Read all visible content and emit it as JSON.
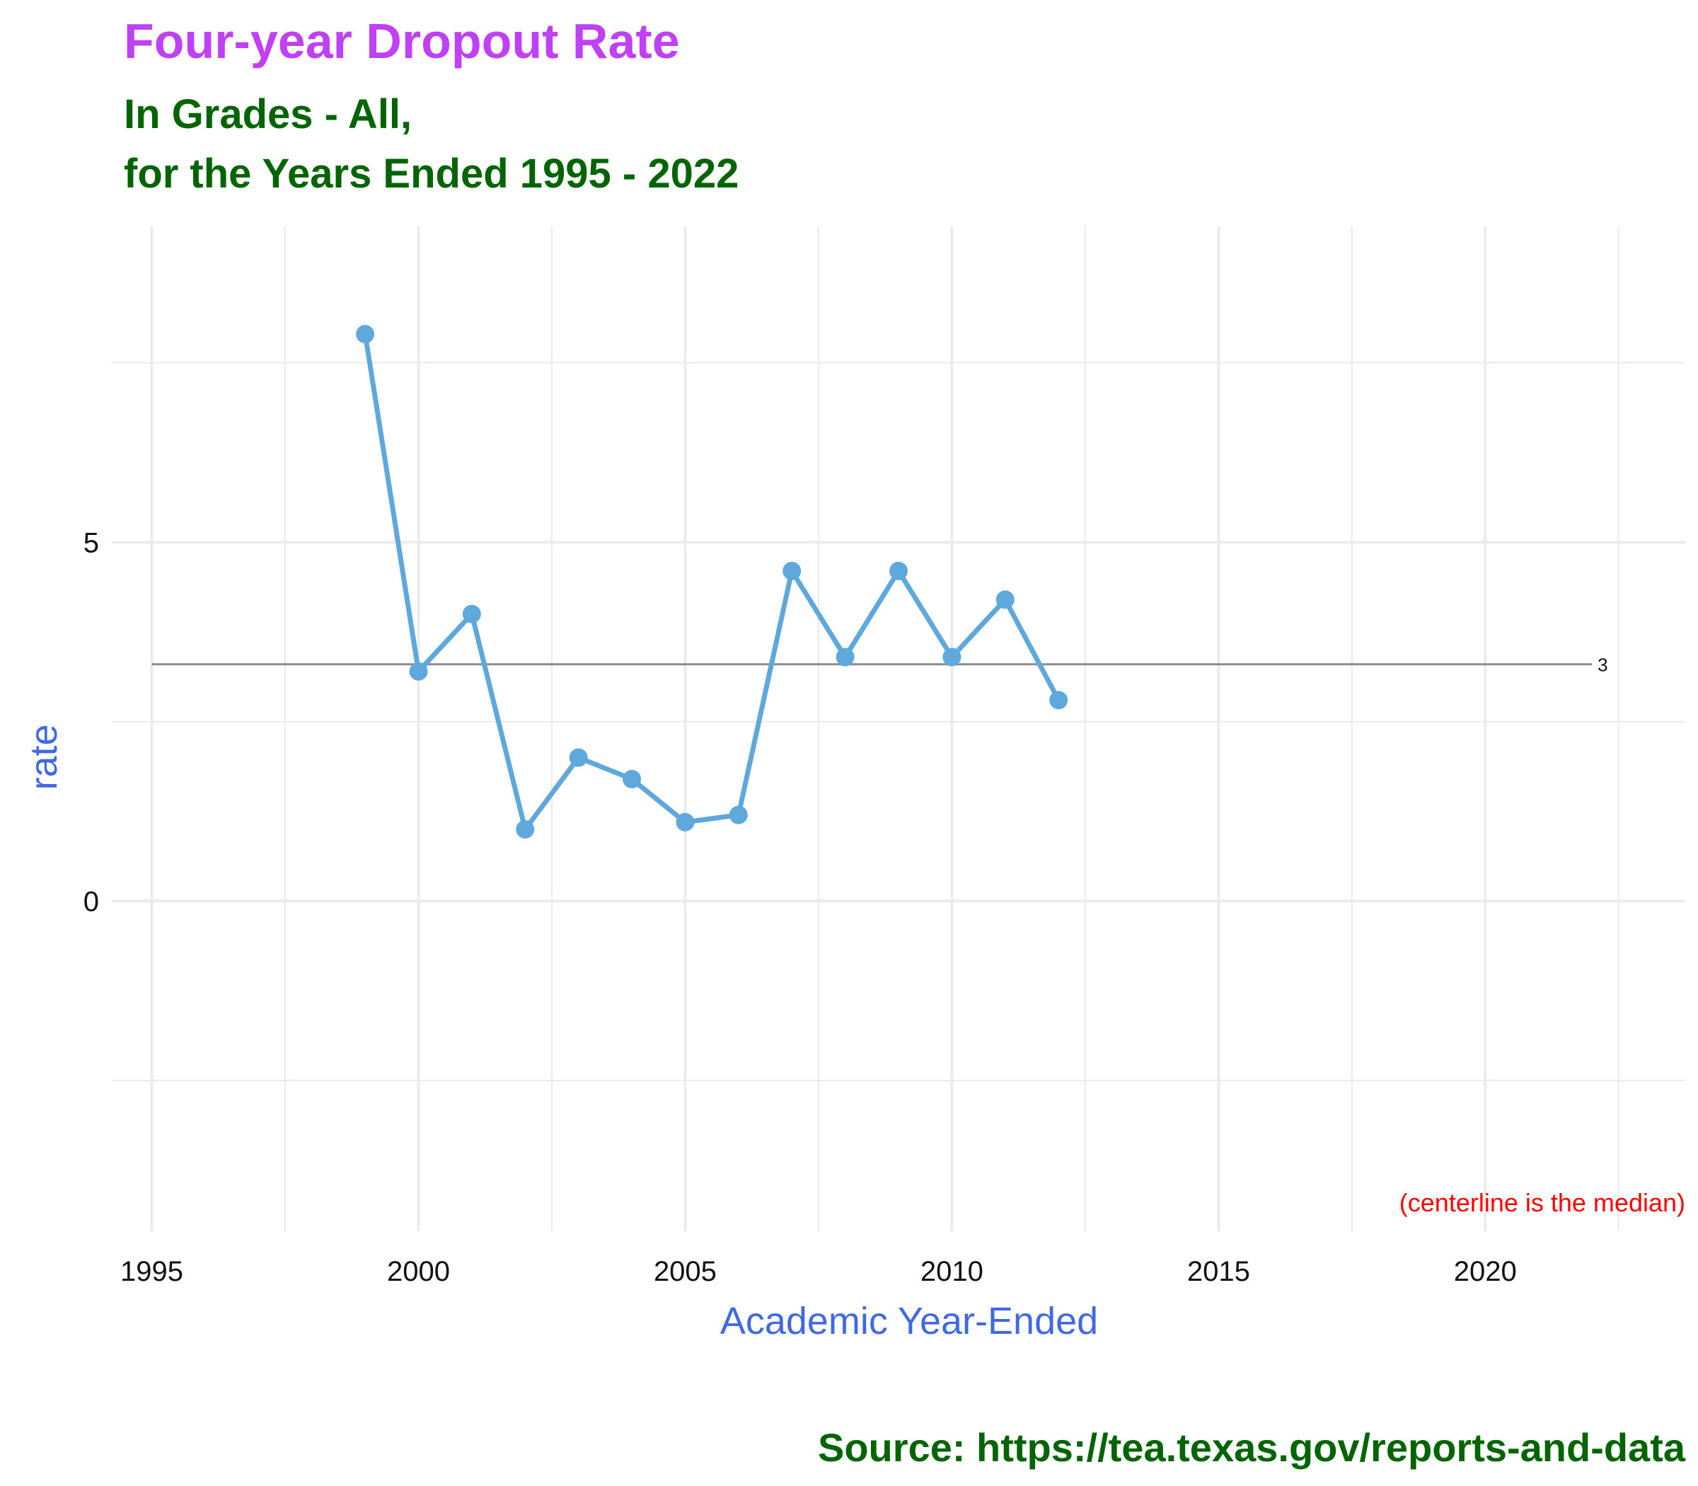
{
  "header": {
    "title": "Four-year Dropout Rate",
    "subtitle_line1": "In Grades - All,",
    "subtitle_line2": "for the Years Ended 1995 - 2022"
  },
  "footer": {
    "caption": "Source:  https://tea.texas.gov/reports-and-data"
  },
  "colors": {
    "title": "#BF40F5",
    "subtitle": "#006400",
    "axis_title": "#4169E1",
    "line": "#5FA8DC",
    "median_line": "#8C8C8C",
    "note": "#FF0000",
    "grid": "#EBEBEB"
  },
  "chart_data": {
    "type": "line",
    "title": "Four-year Dropout Rate",
    "subtitle": "In Grades - All, for the Years Ended 1995 - 2022",
    "xlabel": "Academic Year-Ended",
    "ylabel": "rate",
    "xlim": [
      1994.25,
      2023.75
    ],
    "ylim": [
      -4.6,
      9.4
    ],
    "x_ticks": [
      1995,
      2000,
      2005,
      2010,
      2015,
      2020
    ],
    "y_ticks": [
      0,
      5
    ],
    "grid": true,
    "series": [
      {
        "name": "rate",
        "x": [
          1999,
          2000,
          2001,
          2002,
          2003,
          2004,
          2005,
          2006,
          2007,
          2008,
          2009,
          2010,
          2011,
          2012
        ],
        "values": [
          7.9,
          3.2,
          4.0,
          1.0,
          2.0,
          1.7,
          1.1,
          1.2,
          4.6,
          3.4,
          4.6,
          3.4,
          4.2,
          2.8
        ]
      }
    ],
    "median": {
      "value": 3.3,
      "x_start": 1995,
      "x_end": 2022,
      "label": "3"
    },
    "annotation": "(centerline is the median)"
  }
}
